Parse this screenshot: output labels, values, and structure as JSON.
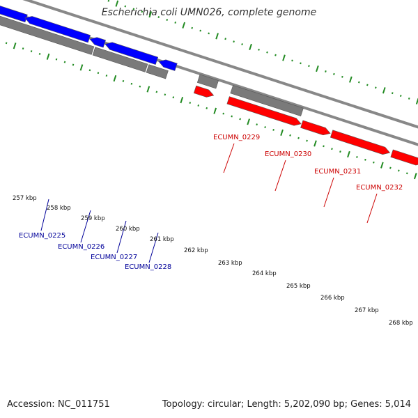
{
  "title": "Escherichia coli UMN026, complete genome",
  "footer": {
    "accession": "Accession: NC_011751",
    "summary": "Topology: circular; Length: 5,202,090 bp; Genes: 5,014"
  },
  "colors": {
    "forward_gene": "#ff0000",
    "reverse_gene": "#0000ff",
    "gene_outline": "#555555",
    "backbone": "#888888",
    "tick": "#228b22",
    "forward_label": "#cc0000",
    "reverse_label": "#000099",
    "kbp_label": "#111111"
  },
  "kbp_labels": [
    "257 kbp",
    "258 kbp",
    "259 kbp",
    "260 kbp",
    "261 kbp",
    "262 kbp",
    "263 kbp",
    "264 kbp",
    "265 kbp",
    "266 kbp",
    "267 kbp",
    "268 kbp"
  ],
  "forward_genes": [
    "ECUMN_0229",
    "ECUMN_0230",
    "ECUMN_0231",
    "ECUMN_0232"
  ],
  "reverse_genes": [
    "ECUMN_0225",
    "ECUMN_0226",
    "ECUMN_0227",
    "ECUMN_0228"
  ]
}
